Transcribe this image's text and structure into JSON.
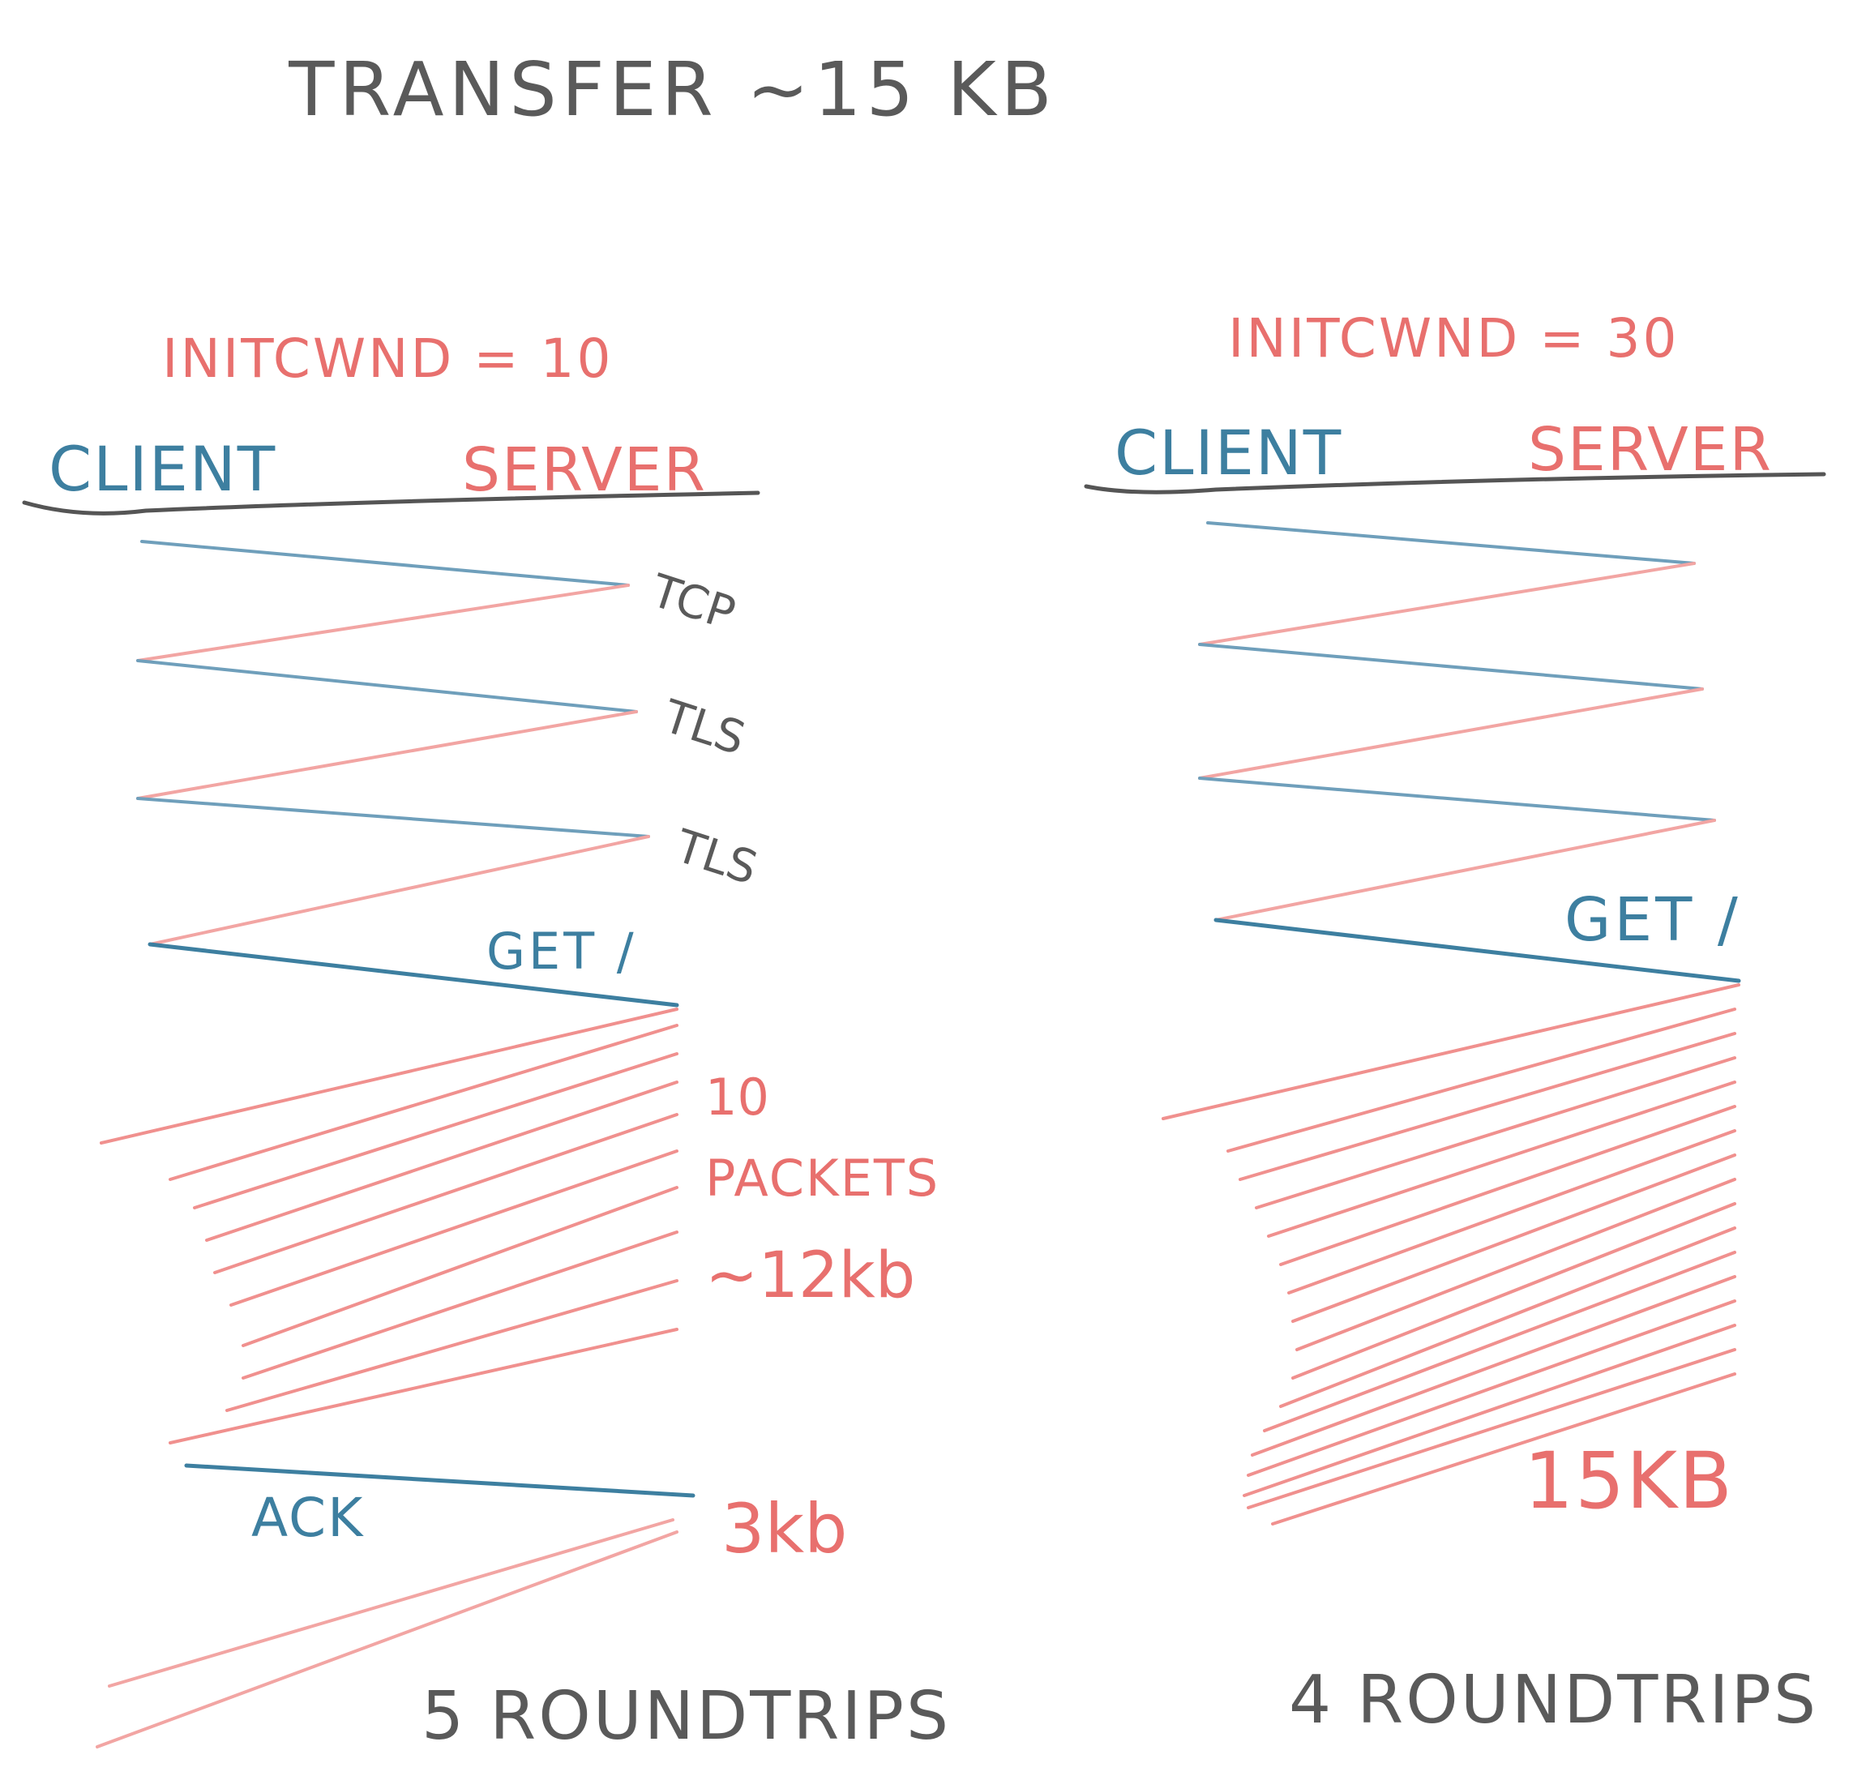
{
  "title": "TRANSFER ~15 KB",
  "colors": {
    "ink": "#5a5a5a",
    "client_blue": "#3d7fa0",
    "server_red": "#e8706e",
    "red_light": "#f3a8a6"
  },
  "left": {
    "initcwnd_label": "INITCWND = 10",
    "client_label": "CLIENT",
    "server_label": "SERVER",
    "handshake_labels": [
      "TCP",
      "TLS",
      "TLS"
    ],
    "get_label": "GET /",
    "packet_count_label": "10",
    "packets_label": "PACKETS",
    "size_label": "~12kb",
    "ack_label": "ACK",
    "remaining_label": "3kb",
    "roundtrips_label": "5 ROUNDTRIPS"
  },
  "right": {
    "initcwnd_label": "INITCWND = 30",
    "client_label": "CLIENT",
    "server_label": "SERVER",
    "get_label": "GET /",
    "size_label": "15KB",
    "roundtrips_label": "4 ROUNDTRIPS"
  }
}
